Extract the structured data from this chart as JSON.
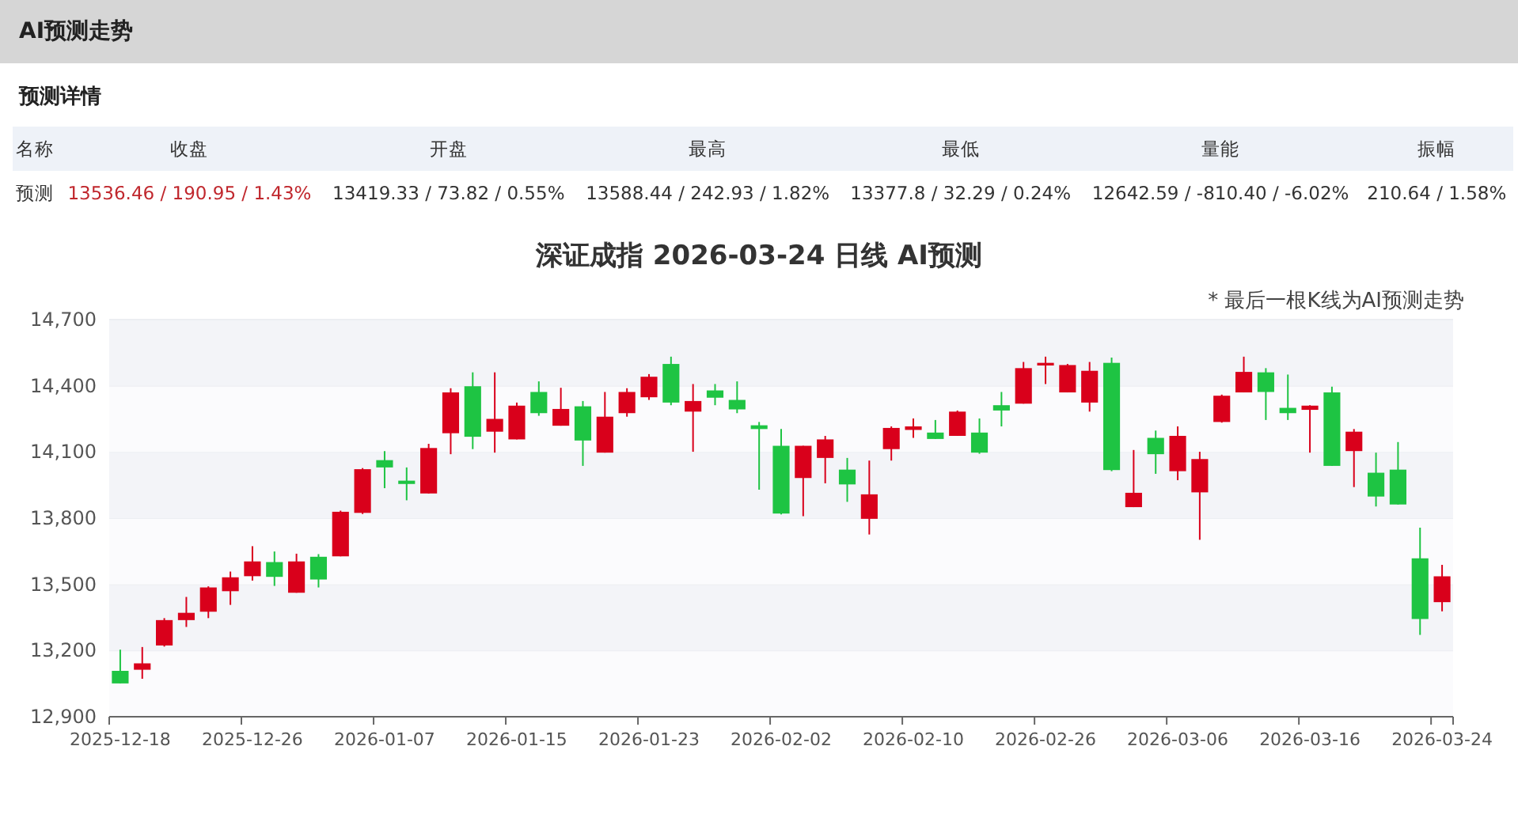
{
  "chart_data": [
    {
      "type": "other",
      "title": "AI预测走势",
      "subtitle": "预测详情",
      "categories": [
        "名称",
        "收盘",
        "开盘",
        "最高",
        "最低",
        "量能",
        "振幅"
      ],
      "annotations": [
        "预测",
        "13536.46 / 190.95 / 1.43%",
        "13419.33 / 73.82 / 0.55%",
        "13588.44 / 242.93 / 1.82%",
        "13377.8 / 32.29 / 0.24%",
        "12642.59 / -810.40 / -6.02%",
        "210.64 / 1.58%"
      ]
    },
    {
      "type": "candlestick",
      "title": "深证成指 2026-03-24 日线 AI预测",
      "annotations": [
        "* 最后一根K线为AI预测走势"
      ],
      "categories": [
        "2025-12-18",
        null,
        null,
        null,
        null,
        null,
        "2025-12-26",
        null,
        null,
        null,
        null,
        null,
        "2026-01-07",
        null,
        null,
        null,
        null,
        null,
        "2026-01-15",
        null,
        null,
        null,
        null,
        null,
        "2026-01-23",
        null,
        null,
        null,
        null,
        null,
        "2026-02-02",
        null,
        null,
        null,
        null,
        null,
        "2026-02-10",
        null,
        null,
        null,
        null,
        null,
        "2026-02-26",
        null,
        null,
        null,
        null,
        null,
        "2026-03-06",
        null,
        null,
        null,
        null,
        null,
        "2026-03-16",
        null,
        null,
        null,
        null,
        null,
        "2026-03-24"
      ],
      "ohlc": [
        [
          13108,
          13204,
          13051,
          13051
        ],
        [
          13113,
          13216,
          13072,
          13142
        ],
        [
          13223,
          13347,
          13218,
          13338
        ],
        [
          13338,
          13443,
          13307,
          13371
        ],
        [
          13376,
          13491,
          13347,
          13486
        ],
        [
          13469,
          13558,
          13407,
          13532
        ],
        [
          13537,
          13673,
          13517,
          13604
        ],
        [
          13601,
          13649,
          13493,
          13534
        ],
        [
          13462,
          13639,
          13462,
          13604
        ],
        [
          13625,
          13637,
          13486,
          13522
        ],
        [
          13627,
          13834,
          13627,
          13829
        ],
        [
          13824,
          14027,
          13819,
          14022
        ],
        [
          14063,
          14104,
          13936,
          14030
        ],
        [
          13970,
          14030,
          13881,
          13955
        ],
        [
          13912,
          14137,
          13912,
          14118
        ],
        [
          14185,
          14389,
          14090,
          14370
        ],
        [
          14398,
          14461,
          14113,
          14169
        ],
        [
          14192,
          14461,
          14097,
          14250
        ],
        [
          14157,
          14324,
          14157,
          14310
        ],
        [
          14372,
          14420,
          14264,
          14276
        ],
        [
          14219,
          14391,
          14219,
          14295
        ],
        [
          14307,
          14331,
          14037,
          14152
        ],
        [
          14097,
          14372,
          14097,
          14260
        ],
        [
          14276,
          14389,
          14260,
          14372
        ],
        [
          14348,
          14453,
          14336,
          14441
        ],
        [
          14499,
          14532,
          14312,
          14324
        ],
        [
          14283,
          14408,
          14101,
          14331
        ],
        [
          14379,
          14408,
          14312,
          14346
        ],
        [
          14336,
          14420,
          14276,
          14293
        ],
        [
          14221,
          14236,
          13929,
          14204
        ],
        [
          14128,
          14204,
          13817,
          13821
        ],
        [
          13982,
          14128,
          13809,
          14128
        ],
        [
          14073,
          14173,
          13958,
          14157
        ],
        [
          14020,
          14073,
          13874,
          13953
        ],
        [
          13797,
          14061,
          13726,
          13908
        ],
        [
          14113,
          14216,
          14061,
          14209
        ],
        [
          14200,
          14252,
          14164,
          14216
        ],
        [
          14188,
          14245,
          14159,
          14159
        ],
        [
          14173,
          14288,
          14173,
          14283
        ],
        [
          14188,
          14252,
          14092,
          14097
        ],
        [
          14312,
          14372,
          14216,
          14288
        ],
        [
          14319,
          14508,
          14319,
          14480
        ],
        [
          14492,
          14532,
          14408,
          14504
        ],
        [
          14370,
          14499,
          14370,
          14494
        ],
        [
          14324,
          14508,
          14283,
          14468
        ],
        [
          14504,
          14528,
          14013,
          14018
        ],
        [
          13850,
          14109,
          13850,
          13915
        ],
        [
          14164,
          14197,
          14001,
          14090
        ],
        [
          14013,
          14216,
          13972,
          14173
        ],
        [
          13917,
          14101,
          13702,
          14068
        ],
        [
          14236,
          14360,
          14233,
          14355
        ],
        [
          14370,
          14532,
          14370,
          14463
        ],
        [
          14461,
          14480,
          14245,
          14372
        ],
        [
          14300,
          14451,
          14245,
          14276
        ],
        [
          14291,
          14312,
          14097,
          14310
        ],
        [
          14370,
          14396,
          14037,
          14037
        ],
        [
          14104,
          14204,
          13941,
          14192
        ],
        [
          14006,
          14097,
          13853,
          13898
        ],
        [
          14020,
          14145,
          13862,
          13862
        ],
        [
          13618,
          13757,
          13271,
          13343
        ],
        [
          13419.33,
          13588.44,
          13377.8,
          13536.46
        ]
      ],
      "colors": [
        "#1ec443",
        "#d9001b",
        "#d9001b",
        "#d9001b",
        "#d9001b",
        "#d9001b",
        "#d9001b",
        "#1ec443",
        "#d9001b",
        "#1ec443",
        "#d9001b",
        "#d9001b",
        "#1ec443",
        "#1ec443",
        "#d9001b",
        "#d9001b",
        "#1ec443",
        "#d9001b",
        "#d9001b",
        "#1ec443",
        "#d9001b",
        "#1ec443",
        "#d9001b",
        "#d9001b",
        "#d9001b",
        "#1ec443",
        "#d9001b",
        "#1ec443",
        "#1ec443",
        "#1ec443",
        "#1ec443",
        "#d9001b",
        "#d9001b",
        "#1ec443",
        "#d9001b",
        "#d9001b",
        "#d9001b",
        "#1ec443",
        "#d9001b",
        "#1ec443",
        "#1ec443",
        "#d9001b",
        "#d9001b",
        "#d9001b",
        "#d9001b",
        "#1ec443",
        "#d9001b",
        "#1ec443",
        "#d9001b",
        "#d9001b",
        "#d9001b",
        "#d9001b",
        "#1ec443",
        "#1ec443",
        "#d9001b",
        "#1ec443",
        "#d9001b",
        "#1ec443",
        "#1ec443",
        "#1ec443",
        "#d9001b"
      ],
      "ylim": [
        12900,
        14700
      ],
      "yticks": [
        {
          "value": 12900,
          "label": "12,900"
        },
        {
          "value": 13200,
          "label": "13,200"
        },
        {
          "value": 13500,
          "label": "13,500"
        },
        {
          "value": 13800,
          "label": "13,800"
        },
        {
          "value": 14100,
          "label": "14,100"
        },
        {
          "value": 14400,
          "label": "14,400"
        },
        {
          "value": 14700,
          "label": "14,700"
        }
      ],
      "grid": "y"
    }
  ]
}
